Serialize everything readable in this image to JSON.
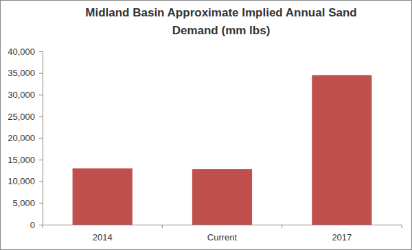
{
  "chart_data": {
    "type": "bar",
    "title": "Midland Basin Approximate Implied Annual Sand Demand (mm lbs)",
    "categories": [
      "2014",
      "Current",
      "2017"
    ],
    "values": [
      13000,
      12800,
      34500
    ],
    "color": "#c0504d",
    "ylim": [
      0,
      40000
    ],
    "yticks": [
      0,
      {
        "value": 5000,
        "label": "5,000"
      },
      {
        "value": 10000,
        "label": "10,000"
      },
      {
        "value": 15000,
        "label": "15,000"
      },
      {
        "value": 20000,
        "label": "20,000"
      },
      {
        "value": 25000,
        "label": "25,000"
      },
      {
        "value": 30000,
        "label": "30,000"
      },
      {
        "value": 35000,
        "label": "35,000"
      },
      {
        "value": 40000,
        "label": "40,000"
      }
    ],
    "grid": false
  }
}
